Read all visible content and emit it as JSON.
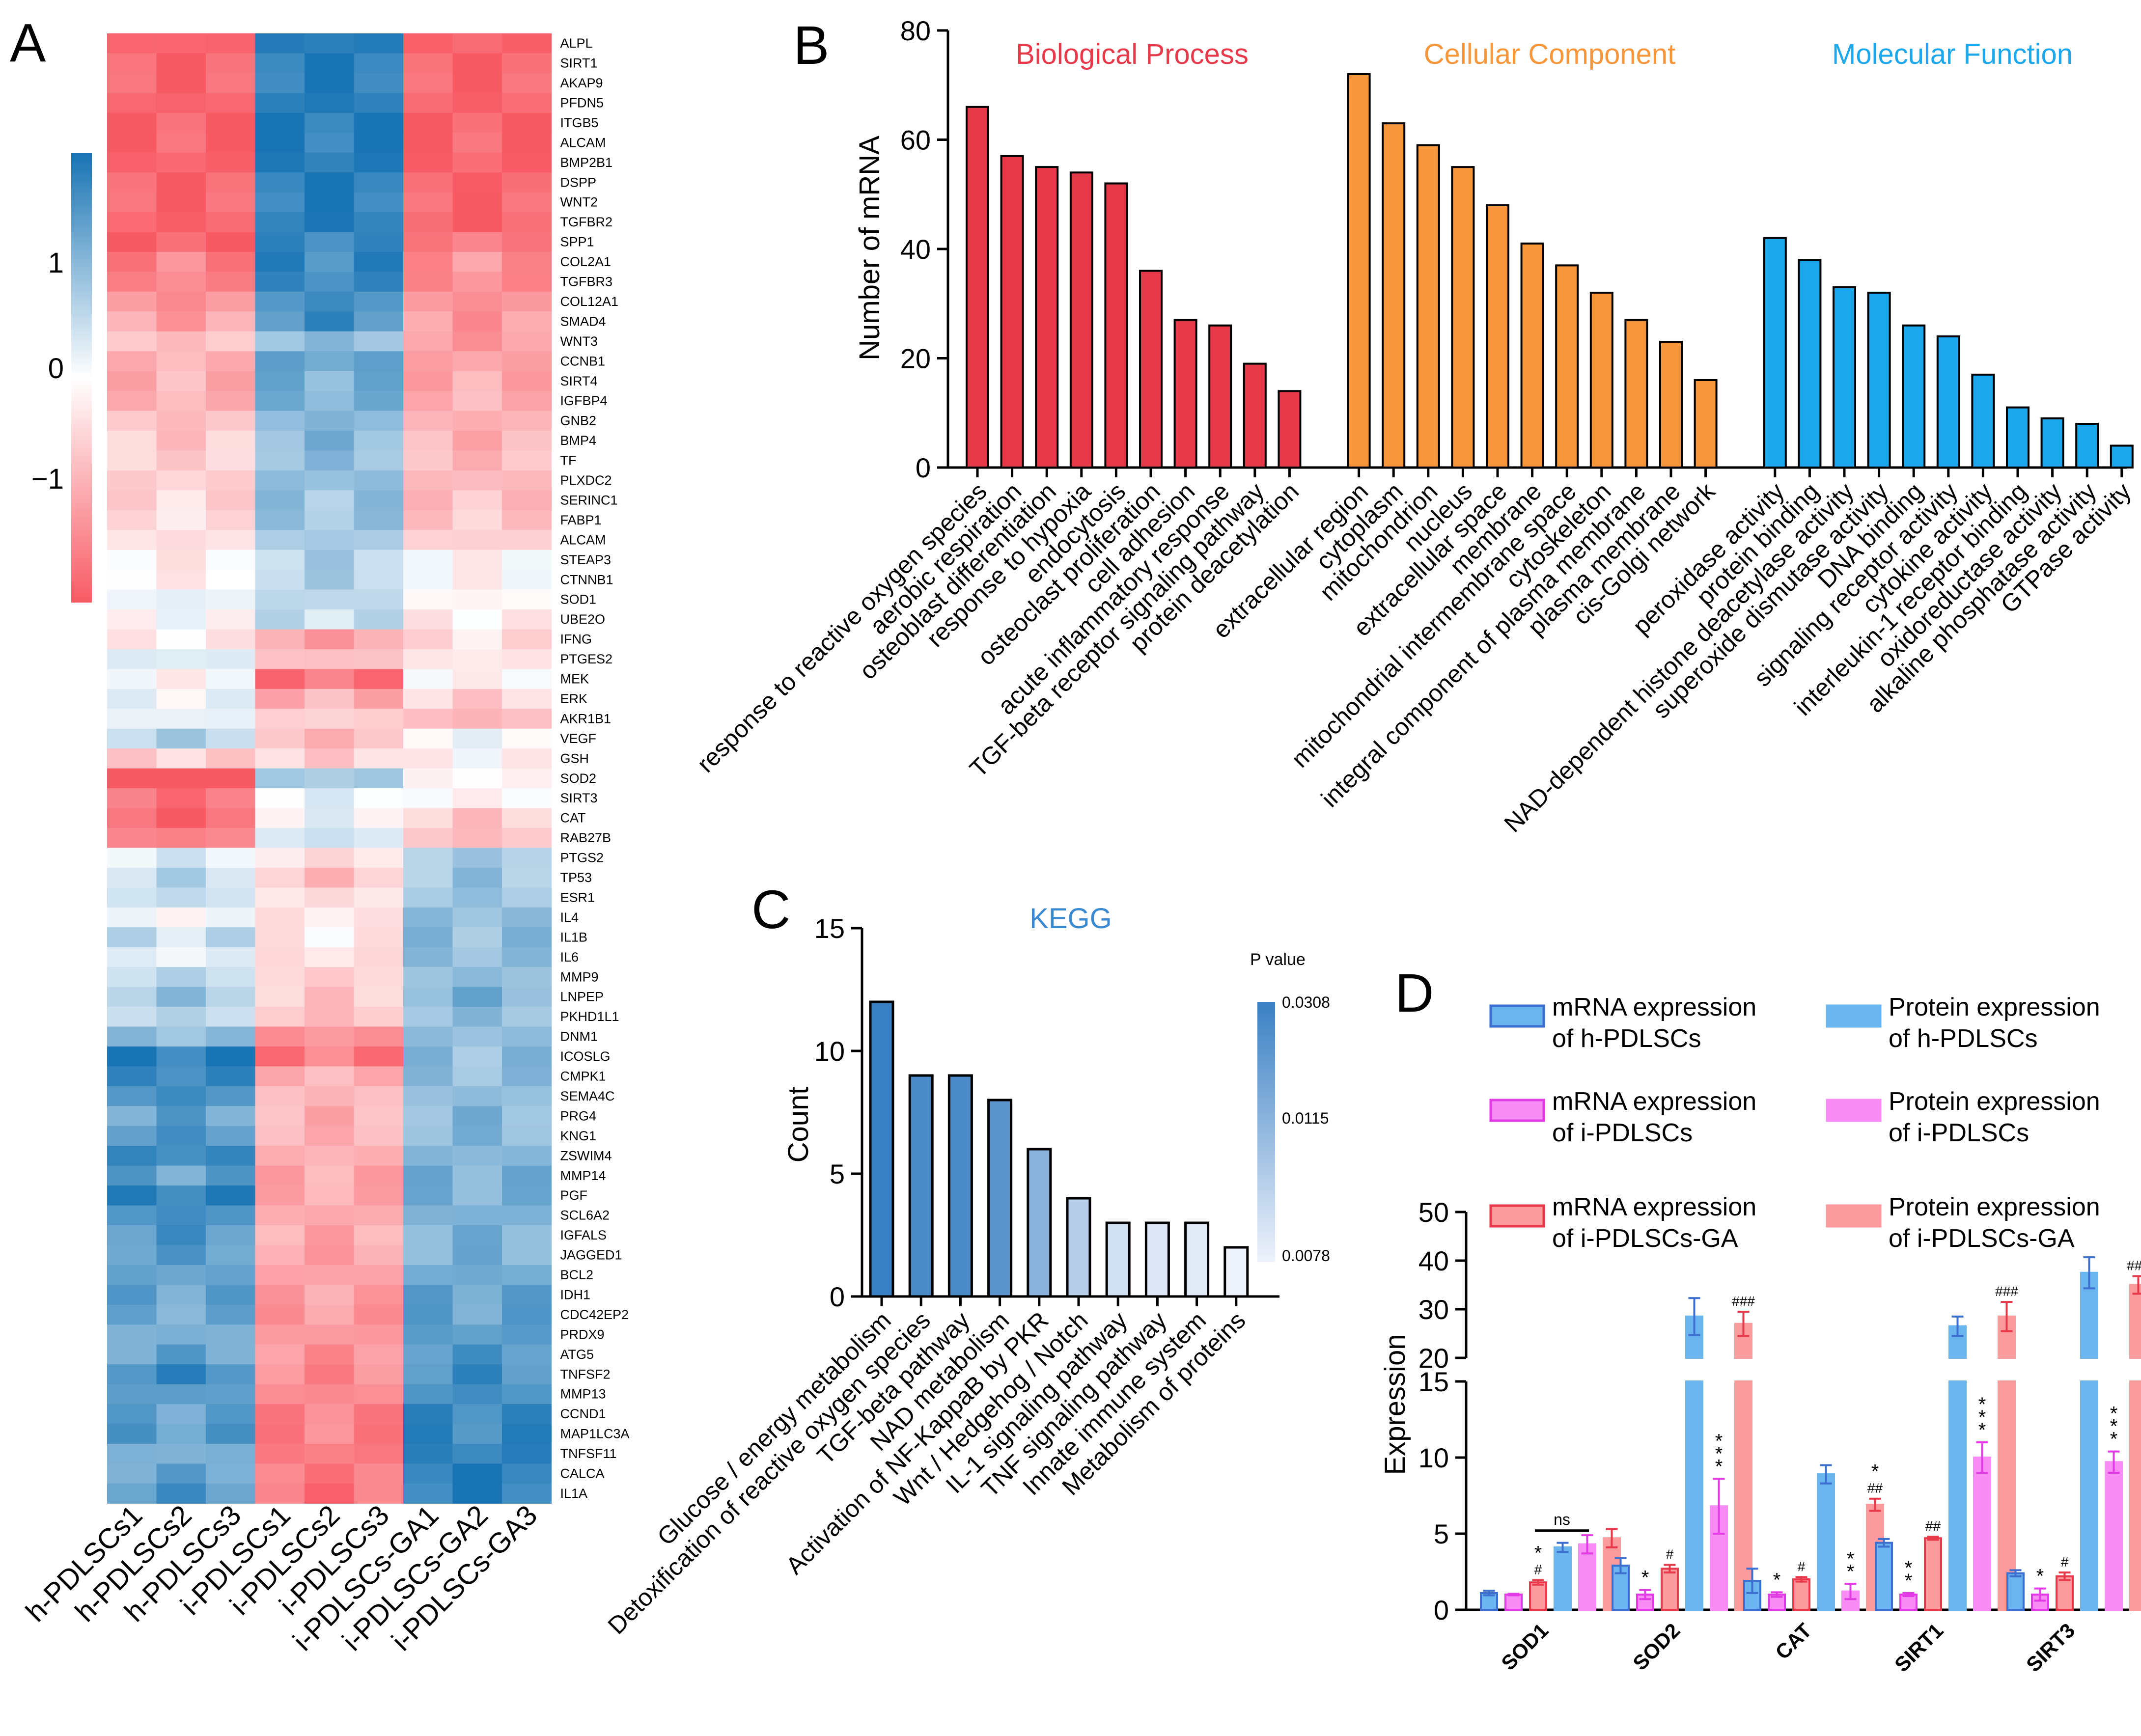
{
  "panels": {
    "a": "A",
    "b": "B",
    "c": "C",
    "d": "D"
  },
  "colors": {
    "red": "#e8394a",
    "orange": "#f7963a",
    "blue": "#1aa7ec",
    "heat_low": "#f85a64",
    "heat_mid": "#ffffff",
    "heat_high": "#1874b4",
    "dark_blue": "#3d6fd0",
    "magenta": "#e23be6",
    "pink": "#fb9b9d",
    "light_blue": "#6bb5ef",
    "light_magenta": "#f88cf5",
    "kegg_title": "#3a8ad2"
  },
  "chart_data": [
    {
      "panel": "A",
      "type": "heatmap",
      "title": "",
      "columns": [
        "h-PDLSCs1",
        "h-PDLSCs2",
        "h-PDLSCs3",
        "i-PDLSCs1",
        "i-PDLSCs2",
        "i-PDLSCs3",
        "i-PDLSCs-GA1",
        "i-PDLSCs-GA2",
        "i-PDLSCs-GA3"
      ],
      "rows": [
        "ALPL",
        "SIRT1",
        "AKAP9",
        "PFDN5",
        "ITGB5",
        "ALCAM",
        "BMP2B1",
        "DSPP",
        "WNT2",
        "TGFBR2",
        "SPP1",
        "COL2A1",
        "TGFBR3",
        "COL12A1",
        "SMAD4",
        "WNT3",
        "CCNB1",
        "SIRT4",
        "IGFBP4",
        "GNB2",
        "BMP4",
        "TF",
        "PLXDC2",
        "SERINC1",
        "FABP1",
        "ALCAM",
        "STEAP3",
        "CTNNB1",
        "SOD1",
        "UBE2O",
        "IFNG",
        "PTGES2",
        "MEK",
        "ERK",
        "AKR1B1",
        "VEGF",
        "GSH",
        "SOD2",
        "SIRT3",
        "CAT",
        "RAB27B",
        "PTGS2",
        "TP53",
        "ESR1",
        "IL4",
        "IL1B",
        "IL6",
        "MMP9",
        "LNPEP",
        "PKHD1L1",
        "DNM1",
        "ICOSLG",
        "CMPK1",
        "SEMA4C",
        "PRG4",
        "KNG1",
        "ZSWIM4",
        "MMP14",
        "PGF",
        "SCL6A2",
        "IGFALS",
        "JAGGED1",
        "BCL2",
        "IDH1",
        "CDC42EP2",
        "PRDX9",
        "ATG5",
        "TNFSF2",
        "MMP13",
        "CCND1",
        "MAP1LC3A",
        "TNFSF11",
        "CALCA",
        "IL1A"
      ],
      "group_pattern": [
        [
          -1,
          1,
          -1
        ],
        [
          -1,
          1,
          -1
        ],
        [
          -1,
          1,
          -1
        ],
        [
          -1,
          1,
          -1
        ],
        [
          -1,
          1,
          -1
        ],
        [
          -1,
          1,
          -1
        ],
        [
          -1,
          1,
          -1
        ],
        [
          -1,
          1,
          -1
        ],
        [
          -1,
          1,
          -1
        ],
        [
          -1,
          1,
          -1
        ],
        [
          -1,
          0.9,
          -0.85
        ],
        [
          -0.8,
          0.9,
          -0.7
        ],
        [
          -0.8,
          0.9,
          -0.75
        ],
        [
          -0.7,
          0.85,
          -0.7
        ],
        [
          -0.6,
          0.85,
          -0.65
        ],
        [
          -0.4,
          0.5,
          -0.65
        ],
        [
          -0.5,
          0.7,
          -0.6
        ],
        [
          -0.5,
          0.6,
          -0.55
        ],
        [
          -0.5,
          0.6,
          -0.5
        ],
        [
          -0.4,
          0.55,
          -0.5
        ],
        [
          -0.35,
          0.55,
          -0.5
        ],
        [
          -0.3,
          0.5,
          -0.45
        ],
        [
          -0.3,
          0.5,
          -0.45
        ],
        [
          -0.25,
          0.45,
          -0.4
        ],
        [
          -0.2,
          0.45,
          -0.35
        ],
        [
          -0.2,
          0.4,
          -0.3
        ],
        [
          -0.1,
          0.35,
          -0.05
        ],
        [
          -0.1,
          0.35,
          -0.05
        ],
        [
          0.1,
          0.3,
          -0.05
        ],
        [
          0,
          0.25,
          -0.1
        ],
        [
          -0.1,
          -0.6,
          -0.2
        ],
        [
          0.15,
          -0.4,
          -0.15
        ],
        [
          -0.05,
          -0.9,
          -0.05
        ],
        [
          0.05,
          -0.5,
          -0.3
        ],
        [
          0.1,
          -0.3,
          -0.45
        ],
        [
          0.35,
          -0.45,
          0.05
        ],
        [
          -0.3,
          -0.3,
          -0.05
        ],
        [
          -1.1,
          0.4,
          -0.05
        ],
        [
          -0.9,
          0.1,
          -0.05
        ],
        [
          -1,
          0.05,
          -0.35
        ],
        [
          -0.8,
          0.2,
          -0.4
        ],
        [
          0.15,
          -0.2,
          0.4
        ],
        [
          0.3,
          -0.4,
          0.45
        ],
        [
          0.25,
          -0.2,
          0.45
        ],
        [
          0,
          -0.15,
          0.5
        ],
        [
          0.25,
          -0.1,
          0.5
        ],
        [
          0.1,
          -0.2,
          0.5
        ],
        [
          0.3,
          -0.3,
          0.5
        ],
        [
          0.45,
          -0.35,
          0.6
        ],
        [
          0.3,
          -0.4,
          0.5
        ],
        [
          0.5,
          -0.7,
          0.5
        ],
        [
          1.0,
          -0.85,
          0.5
        ],
        [
          0.9,
          -0.5,
          0.5
        ],
        [
          0.85,
          -0.45,
          0.5
        ],
        [
          0.7,
          -0.5,
          0.55
        ],
        [
          0.8,
          -0.5,
          0.55
        ],
        [
          0.9,
          -0.5,
          0.55
        ],
        [
          0.7,
          -0.55,
          0.6
        ],
        [
          0.95,
          -0.55,
          0.6
        ],
        [
          0.85,
          -0.55,
          0.6
        ],
        [
          0.8,
          -0.55,
          0.6
        ],
        [
          0.75,
          -0.6,
          0.6
        ],
        [
          0.7,
          -0.6,
          0.65
        ],
        [
          0.7,
          -0.6,
          0.7
        ],
        [
          0.65,
          -0.65,
          0.7
        ],
        [
          0.6,
          -0.65,
          0.75
        ],
        [
          0.7,
          -0.7,
          0.8
        ],
        [
          0.9,
          -0.75,
          0.85
        ],
        [
          0.75,
          -0.75,
          0.85
        ],
        [
          0.7,
          -0.8,
          0.9
        ],
        [
          0.75,
          -0.8,
          0.9
        ],
        [
          0.6,
          -0.85,
          0.95
        ],
        [
          0.7,
          -0.85,
          1.0
        ],
        [
          0.8,
          -0.9,
          1.0
        ]
      ],
      "color_scale": {
        "ticks": [
          "1",
          "0",
          "−1"
        ],
        "min": -1.6,
        "max": 1.6
      },
      "xlabel": "",
      "ylabel": ""
    },
    {
      "panel": "B",
      "type": "bar",
      "title": "",
      "ylabel": "Number of mRNA",
      "ylim": [
        0,
        80
      ],
      "yticks": [
        "0",
        "20",
        "40",
        "60",
        "80"
      ],
      "groups": [
        {
          "name": "Biological Process",
          "color": "#e8394a",
          "categories": [
            "response to reactive oxygen species",
            "aerobic respiration",
            "osteoblast differentiation",
            "response to hypoxia",
            "endocytosis",
            "osteoclast proliferation",
            "cell adhesion",
            "acute inflammatory response",
            "TGF-beta receptor signaling pathway",
            "protein deacetylation"
          ],
          "values": [
            66,
            57,
            55,
            54,
            52,
            36,
            27,
            26,
            19,
            14
          ]
        },
        {
          "name": "Cellular Component",
          "color": "#f7963a",
          "categories": [
            "extracellular region",
            "cytoplasm",
            "mitochondrion",
            "nucleus",
            "extracellular space",
            "membrane",
            "mitochondrial intermembrane space",
            "cytoskeleton",
            "integral component of plasma membrane",
            "plasma membrane",
            "cis-Golgi network"
          ],
          "values": [
            72,
            63,
            59,
            55,
            48,
            41,
            37,
            32,
            27,
            23,
            16
          ]
        },
        {
          "name": "Molecular Function",
          "color": "#1aa7ec",
          "categories": [
            "peroxidase activity",
            "protein binding",
            "NAD-dependent histone deacetylase activity",
            "superoxide dismutase activity",
            "DNA binding",
            "signaling receptor activity",
            "cytokine activity",
            "interleukin-1 receptor binding",
            "oxidoreductase activity",
            "alkaline phosphatase activity",
            "GTPase activity"
          ],
          "values": [
            42,
            38,
            33,
            32,
            26,
            24,
            17,
            11,
            9,
            8,
            4
          ]
        }
      ]
    },
    {
      "panel": "C",
      "type": "bar",
      "title": "KEGG",
      "ylabel": "Count",
      "ylim": [
        0,
        15
      ],
      "yticks": [
        "0",
        "5",
        "10",
        "15"
      ],
      "categories": [
        "Glucose / energy metabolism",
        "Detoxification of reactive oxygen species",
        "TGF-beta pathway",
        "NAD metabolism",
        "Activation of NF-KappaB by PKR",
        "Wnt / Hedgehog / Notch",
        "IL-1 signaling pathway",
        "TNF signaling pathway",
        "Innate immune system",
        "Metabolism of proteins"
      ],
      "values": [
        12,
        9,
        9,
        8,
        6,
        4,
        3,
        3,
        3,
        2
      ],
      "p_values": [
        0.0308,
        0.0285,
        0.0285,
        0.0265,
        0.0205,
        0.015,
        0.0115,
        0.01,
        0.0095,
        0.0078
      ],
      "legend": {
        "title": "P value",
        "ticks": [
          "0.0308",
          "0.0115",
          "0.0078"
        ]
      }
    },
    {
      "panel": "D",
      "type": "bar",
      "title": "",
      "ylabel": "Expression",
      "axis_break": [
        15,
        20
      ],
      "lower_ylim": [
        0,
        15
      ],
      "upper_ylim": [
        20,
        50
      ],
      "lower_yticks": [
        "0",
        "5",
        "10",
        "15"
      ],
      "upper_yticks": [
        "20",
        "30",
        "40",
        "50"
      ],
      "categories": [
        "SOD1",
        "SOD2",
        "CAT",
        "SIRT1",
        "SIRT3"
      ],
      "series": [
        {
          "name": "mRNA expression of h-PDLSCs",
          "legend": [
            "mRNA expression",
            "of h-PDLSCs"
          ],
          "fill": "#6bb5ef",
          "stroke": "#3d6fd0",
          "err_color": "#3d6fd0",
          "values": [
            1.1,
            2.9,
            1.9,
            4.4,
            2.4
          ],
          "errors": [
            0.15,
            0.5,
            0.8,
            0.25,
            0.2
          ],
          "marks": [
            "",
            "",
            "",
            "",
            ""
          ]
        },
        {
          "name": "mRNA expression of i-PDLSCs",
          "legend": [
            "mRNA expression",
            "of i-PDLSCs"
          ],
          "fill": "#f88cf5",
          "stroke": "#e23be6",
          "err_color": "#e23be6",
          "values": [
            1.0,
            1.0,
            1.0,
            1.0,
            1.0
          ],
          "errors": [
            0.05,
            0.3,
            0.15,
            0.1,
            0.4
          ],
          "marks": [
            "",
            "*",
            "*",
            "**",
            "*"
          ]
        },
        {
          "name": "mRNA expression of i-PDLSCs-GA",
          "legend": [
            "mRNA expression",
            "of i-PDLSCs-GA"
          ],
          "fill": "#fb9b9d",
          "stroke": "#e8394a",
          "err_color": "#e8394a",
          "values": [
            1.8,
            2.7,
            2.0,
            4.7,
            2.2
          ],
          "errors": [
            0.15,
            0.25,
            0.15,
            0.1,
            0.25
          ],
          "marks": [
            "*\n#",
            "#",
            "#",
            "##",
            "#"
          ]
        },
        {
          "name": "Protein expression of h-PDLSCs",
          "legend": [
            "Protein expression",
            "of h-PDLSCs"
          ],
          "fill": "#6bb5ef",
          "stroke": "#6bb5ef",
          "err_color": "#3d6fd0",
          "values": [
            4.1,
            28.5,
            8.9,
            26.5,
            37.5
          ],
          "errors": [
            0.3,
            3.8,
            0.6,
            2.0,
            3.2
          ],
          "marks": [
            "",
            "",
            "",
            "",
            ""
          ]
        },
        {
          "name": "Protein expression of i-PDLSCs",
          "legend": [
            "Protein expression",
            "of i-PDLSCs"
          ],
          "fill": "#f88cf5",
          "stroke": "#f88cf5",
          "err_color": "#e23be6",
          "values": [
            4.3,
            6.8,
            1.2,
            10.0,
            9.7
          ],
          "errors": [
            0.6,
            1.8,
            0.5,
            1.0,
            0.7
          ],
          "marks": [
            "",
            "***",
            "**",
            "***",
            "***"
          ]
        },
        {
          "name": "Protein expression of i-PDLSCs-GA",
          "legend": [
            "Protein expression",
            "of i-PDLSCs-GA"
          ],
          "fill": "#fb9b9d",
          "stroke": "#fb9b9d",
          "err_color": "#e8394a",
          "values": [
            4.7,
            27.0,
            6.9,
            28.5,
            35.0
          ],
          "errors": [
            0.6,
            2.5,
            0.4,
            3.0,
            1.8
          ],
          "marks": [
            "",
            "###",
            "*\n##",
            "###",
            "###"
          ]
        }
      ],
      "ns_label": "ns"
    }
  ]
}
